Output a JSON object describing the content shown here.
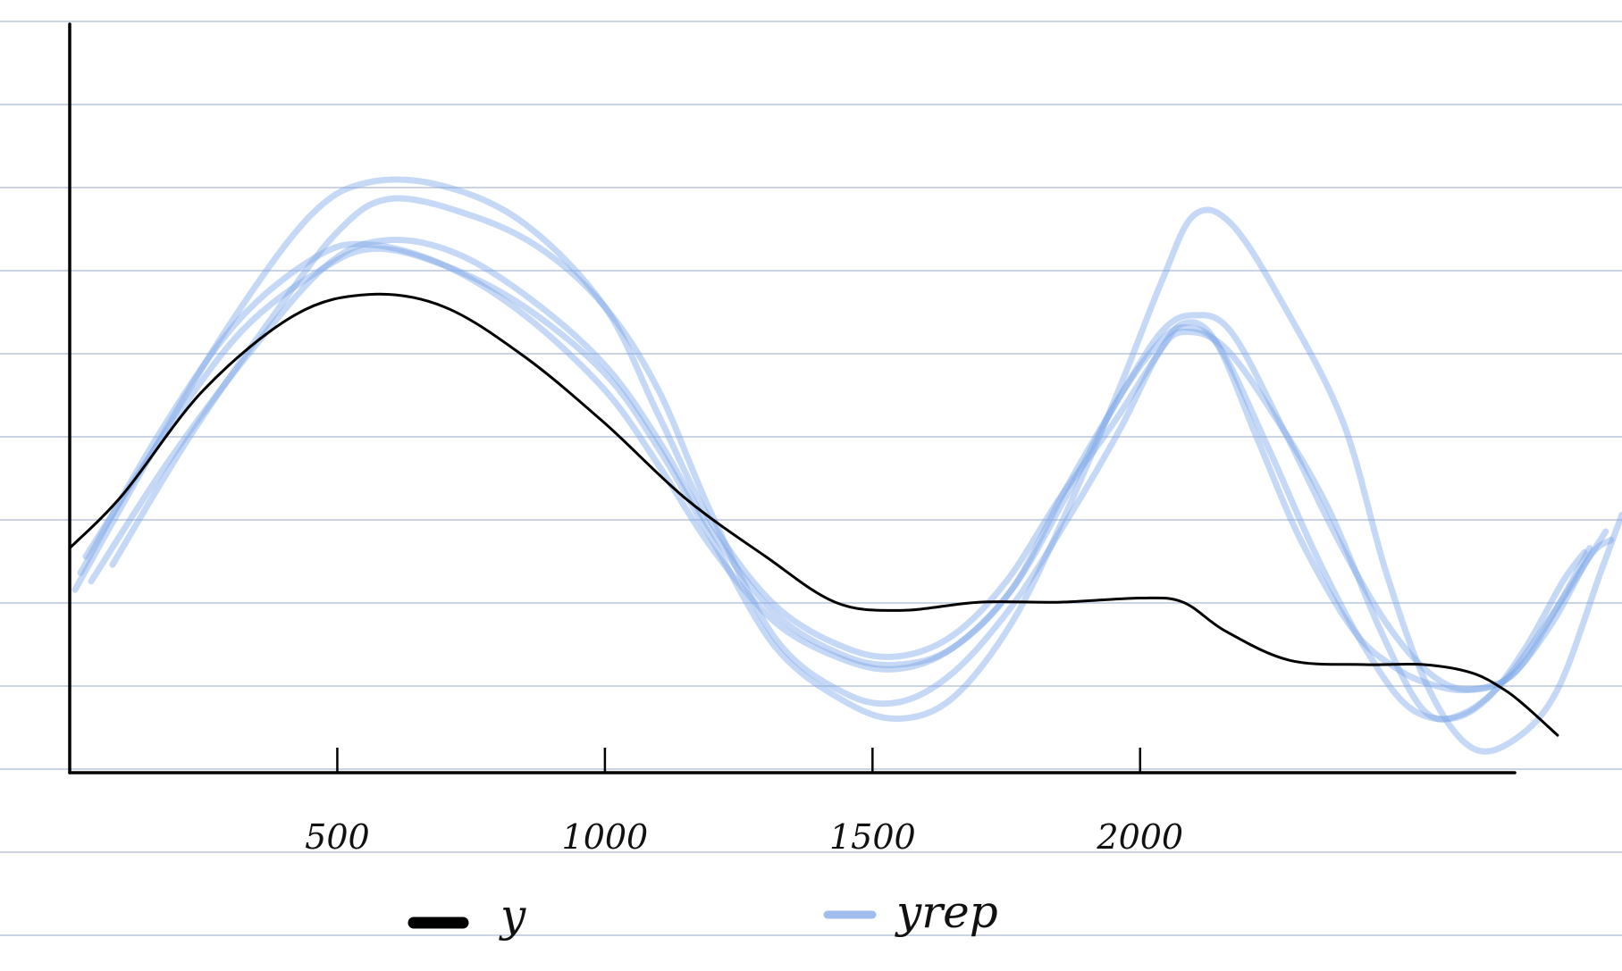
{
  "chart_data": {
    "type": "line",
    "title": "",
    "xlabel": "",
    "ylabel": "",
    "xlim": [
      0,
      2700
    ],
    "ylim": [
      0,
      9
    ],
    "grid": "horizontal ruled lines (notebook paper)",
    "x_ticks": [
      {
        "value": 500,
        "label": "500"
      },
      {
        "value": 1000,
        "label": "1000"
      },
      {
        "value": 1500,
        "label": "1500"
      },
      {
        "value": 2000,
        "label": "2000"
      }
    ],
    "legend": {
      "placement": "bottom",
      "entries": [
        {
          "label": "y",
          "color": "#000000"
        },
        {
          "label": "yrep",
          "color": "#7fa8e8"
        }
      ]
    },
    "series": [
      {
        "name": "y",
        "color": "#000000",
        "points": [
          [
            0,
            2.7
          ],
          [
            100,
            3.35
          ],
          [
            250,
            4.6
          ],
          [
            420,
            5.5
          ],
          [
            560,
            5.75
          ],
          [
            700,
            5.6
          ],
          [
            850,
            5.0
          ],
          [
            1000,
            4.2
          ],
          [
            1150,
            3.3
          ],
          [
            1300,
            2.6
          ],
          [
            1430,
            2.05
          ],
          [
            1550,
            1.95
          ],
          [
            1700,
            2.05
          ],
          [
            1850,
            2.05
          ],
          [
            2000,
            2.1
          ],
          [
            2080,
            2.05
          ],
          [
            2160,
            1.7
          ],
          [
            2280,
            1.35
          ],
          [
            2420,
            1.3
          ],
          [
            2530,
            1.3
          ],
          [
            2620,
            1.2
          ],
          [
            2680,
            1.0
          ],
          [
            2720,
            0.8
          ],
          [
            2780,
            0.45
          ]
        ]
      },
      {
        "name": "yrep",
        "color": "#7fa8e8",
        "draws": [
          [
            [
              10,
              2.2
            ],
            [
              150,
              3.8
            ],
            [
              300,
              5.4
            ],
            [
              450,
              6.7
            ],
            [
              560,
              7.1
            ],
            [
              700,
              7.05
            ],
            [
              850,
              6.6
            ],
            [
              1000,
              5.6
            ],
            [
              1100,
              4.3
            ],
            [
              1200,
              3.0
            ],
            [
              1320,
              2.0
            ],
            [
              1450,
              1.5
            ],
            [
              1550,
              1.4
            ],
            [
              1650,
              1.65
            ],
            [
              1750,
              2.3
            ],
            [
              1850,
              3.3
            ],
            [
              1950,
              4.2
            ],
            [
              2030,
              5.0
            ],
            [
              2080,
              5.4
            ],
            [
              2140,
              5.2
            ],
            [
              2220,
              4.0
            ],
            [
              2300,
              2.8
            ],
            [
              2400,
              1.7
            ],
            [
              2480,
              1.25
            ],
            [
              2550,
              1.05
            ],
            [
              2620,
              1.0
            ],
            [
              2700,
              1.2
            ],
            [
              2780,
              2.0
            ],
            [
              2840,
              2.7
            ]
          ],
          [
            [
              20,
              2.4
            ],
            [
              160,
              4.0
            ],
            [
              310,
              5.4
            ],
            [
              460,
              6.2
            ],
            [
              560,
              6.35
            ],
            [
              700,
              6.1
            ],
            [
              850,
              5.5
            ],
            [
              1000,
              4.6
            ],
            [
              1100,
              3.7
            ],
            [
              1200,
              2.7
            ],
            [
              1320,
              1.8
            ],
            [
              1450,
              1.35
            ],
            [
              1550,
              1.25
            ],
            [
              1650,
              1.5
            ],
            [
              1760,
              2.2
            ],
            [
              1860,
              3.3
            ],
            [
              1960,
              4.5
            ],
            [
              2040,
              5.2
            ],
            [
              2090,
              5.35
            ],
            [
              2150,
              5.1
            ],
            [
              2240,
              3.9
            ],
            [
              2330,
              2.6
            ],
            [
              2420,
              1.5
            ],
            [
              2500,
              0.8
            ],
            [
              2580,
              0.65
            ],
            [
              2650,
              0.9
            ],
            [
              2720,
              1.5
            ],
            [
              2790,
              2.3
            ],
            [
              2830,
              2.65
            ]
          ],
          [
            [
              80,
              2.5
            ],
            [
              220,
              4.0
            ],
            [
              370,
              5.4
            ],
            [
              500,
              6.5
            ],
            [
              600,
              6.9
            ],
            [
              750,
              6.7
            ],
            [
              880,
              6.3
            ],
            [
              1000,
              5.6
            ],
            [
              1100,
              4.6
            ],
            [
              1200,
              3.1
            ],
            [
              1320,
              1.6
            ],
            [
              1450,
              0.95
            ],
            [
              1550,
              0.85
            ],
            [
              1650,
              1.2
            ],
            [
              1760,
              2.0
            ],
            [
              1860,
              3.0
            ],
            [
              1960,
              4.1
            ],
            [
              2040,
              5.1
            ],
            [
              2090,
              5.3
            ],
            [
              2160,
              5.1
            ],
            [
              2250,
              4.3
            ],
            [
              2350,
              3.2
            ],
            [
              2450,
              1.7
            ],
            [
              2530,
              0.75
            ],
            [
              2600,
              0.7
            ],
            [
              2680,
              1.1
            ],
            [
              2760,
              1.8
            ],
            [
              2830,
              2.5
            ],
            [
              2870,
              2.9
            ]
          ],
          [
            [
              30,
              2.6
            ],
            [
              170,
              4.0
            ],
            [
              320,
              5.3
            ],
            [
              470,
              6.05
            ],
            [
              570,
              6.3
            ],
            [
              700,
              6.1
            ],
            [
              850,
              5.6
            ],
            [
              1000,
              4.8
            ],
            [
              1100,
              3.9
            ],
            [
              1200,
              2.8
            ],
            [
              1320,
              1.5
            ],
            [
              1450,
              0.85
            ],
            [
              1550,
              0.65
            ],
            [
              1650,
              0.9
            ],
            [
              1760,
              1.8
            ],
            [
              1860,
              3.1
            ],
            [
              1960,
              4.6
            ],
            [
              2040,
              5.9
            ],
            [
              2100,
              6.7
            ],
            [
              2170,
              6.6
            ],
            [
              2270,
              5.6
            ],
            [
              2380,
              4.2
            ],
            [
              2460,
              2.4
            ],
            [
              2540,
              1.0
            ],
            [
              2620,
              0.3
            ],
            [
              2700,
              0.4
            ],
            [
              2780,
              1.0
            ],
            [
              2860,
              2.4
            ],
            [
              2900,
              3.1
            ]
          ],
          [
            [
              40,
              2.3
            ],
            [
              180,
              3.7
            ],
            [
              330,
              5.0
            ],
            [
              480,
              6.1
            ],
            [
              590,
              6.4
            ],
            [
              720,
              6.25
            ],
            [
              860,
              5.7
            ],
            [
              1000,
              4.9
            ],
            [
              1100,
              4.0
            ],
            [
              1200,
              2.9
            ],
            [
              1320,
              1.9
            ],
            [
              1450,
              1.4
            ],
            [
              1550,
              1.3
            ],
            [
              1650,
              1.5
            ],
            [
              1760,
              2.2
            ],
            [
              1860,
              3.4
            ],
            [
              1960,
              4.5
            ],
            [
              2040,
              5.3
            ],
            [
              2100,
              5.5
            ],
            [
              2170,
              5.3
            ],
            [
              2270,
              4.1
            ],
            [
              2370,
              2.8
            ],
            [
              2460,
              1.8
            ],
            [
              2540,
              1.2
            ],
            [
              2610,
              1.0
            ],
            [
              2690,
              1.15
            ],
            [
              2770,
              1.8
            ],
            [
              2840,
              2.6
            ],
            [
              2880,
              2.8
            ]
          ]
        ]
      }
    ]
  }
}
